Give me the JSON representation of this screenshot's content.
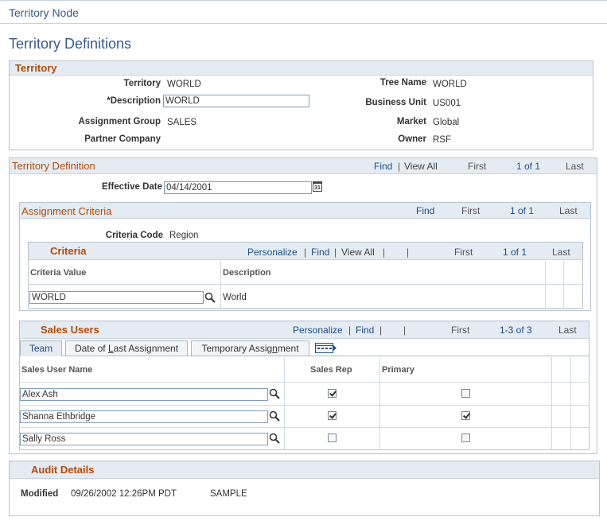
{
  "breadcrumb": "Territory Node",
  "page_title": "Territory Definitions",
  "territory": {
    "header": "Territory",
    "fields": [
      {
        "label": "Territory",
        "value": "WORLD"
      },
      {
        "label": "*Description",
        "value": "WORLD"
      },
      {
        "label": "Assignment Group",
        "value": "SALES"
      },
      {
        "label": "Partner Company",
        "value": ""
      },
      {
        "label": "Tree Name",
        "value": "WORLD"
      },
      {
        "label": "Business Unit",
        "value": "US001"
      },
      {
        "label": "Market",
        "value": "Global"
      },
      {
        "label": "Owner",
        "value": "RSF"
      }
    ]
  },
  "territory_definition": {
    "header": "Territory Definition",
    "nav": {
      "find": "Find",
      "sep": "|",
      "view_all": "View All",
      "first": "First",
      "count": "1 of 1",
      "last": "Last"
    },
    "effective_date_label": "Effective Date",
    "effective_date": "04/14/2001",
    "calendar_icon": "31"
  },
  "assignment_criteria": {
    "header": "Assignment Criteria",
    "nav": {
      "find": "Find",
      "first": "First",
      "count": "1 of 1",
      "last": "Last"
    },
    "criteria_code_label": "Criteria Code",
    "criteria_code": "Region",
    "grid": {
      "title": "Criteria",
      "personalize": "Personalize",
      "find": "Find",
      "view_all": "View All",
      "sep": "|",
      "first": "First",
      "count": "1 of 1",
      "last": "Last",
      "columns": [
        "Criteria Value",
        "Description"
      ],
      "rows": [
        {
          "value": "WORLD",
          "description": "World"
        }
      ]
    }
  },
  "sales_users": {
    "title": "Sales Users",
    "personalize": "Personalize",
    "find": "Find",
    "sep": "|",
    "first": "First",
    "count": "1-3 of 3",
    "last": "Last",
    "tabs": [
      "Team",
      "Date of Last Assignment",
      "Temporary Assignment"
    ],
    "columns": [
      "Sales User Name",
      "Sales Rep",
      "Primary"
    ],
    "rows": [
      {
        "name": "Alex Ash",
        "sales_rep": true,
        "primary": false
      },
      {
        "name": "Shanna Ethbridge",
        "sales_rep": true,
        "primary": true
      },
      {
        "name": "Sally Ross",
        "sales_rep": false,
        "primary": false
      }
    ]
  },
  "audit": {
    "header": "Audit Details",
    "modified_label": "Modified",
    "modified_value": "09/26/2002 12:26PM PDT",
    "modified_by": "SAMPLE"
  }
}
